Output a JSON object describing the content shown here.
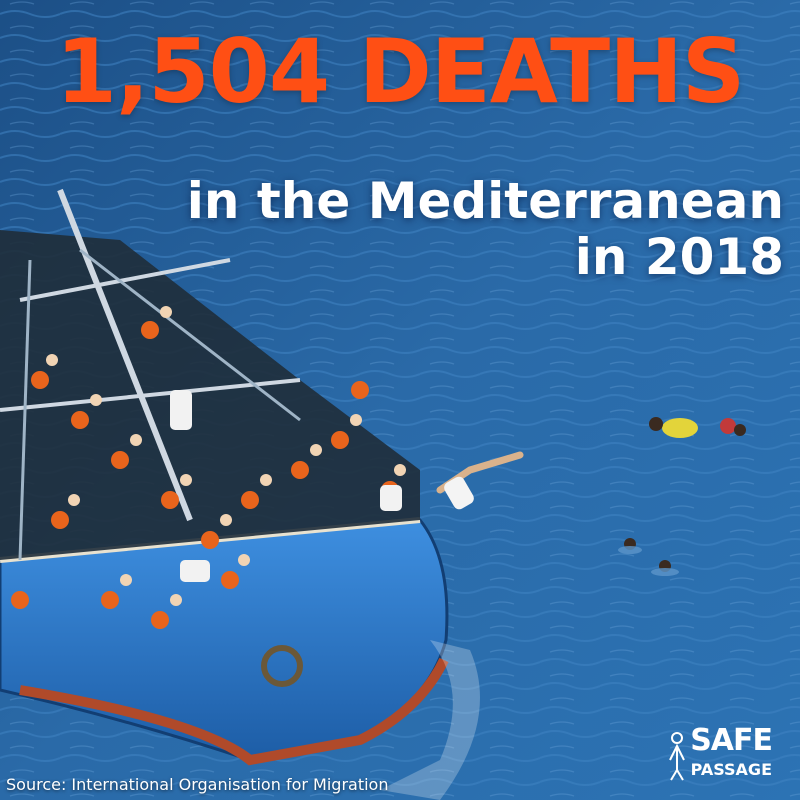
{
  "headline": {
    "text": "1,504 DEATHS",
    "color": "#ff4f14"
  },
  "subheadline": {
    "line1": "in the Mediterranean",
    "line2": "in 2018",
    "color": "#ffffff"
  },
  "source": {
    "text": "Source: International Organisation for Migration"
  },
  "logo": {
    "line1": "SAFE",
    "line2": "PASSAGE"
  },
  "scene": {
    "sea_color": "#1f5f9c",
    "boat_color": "#2f7fd0",
    "lifejacket_color": "#e8641c"
  }
}
